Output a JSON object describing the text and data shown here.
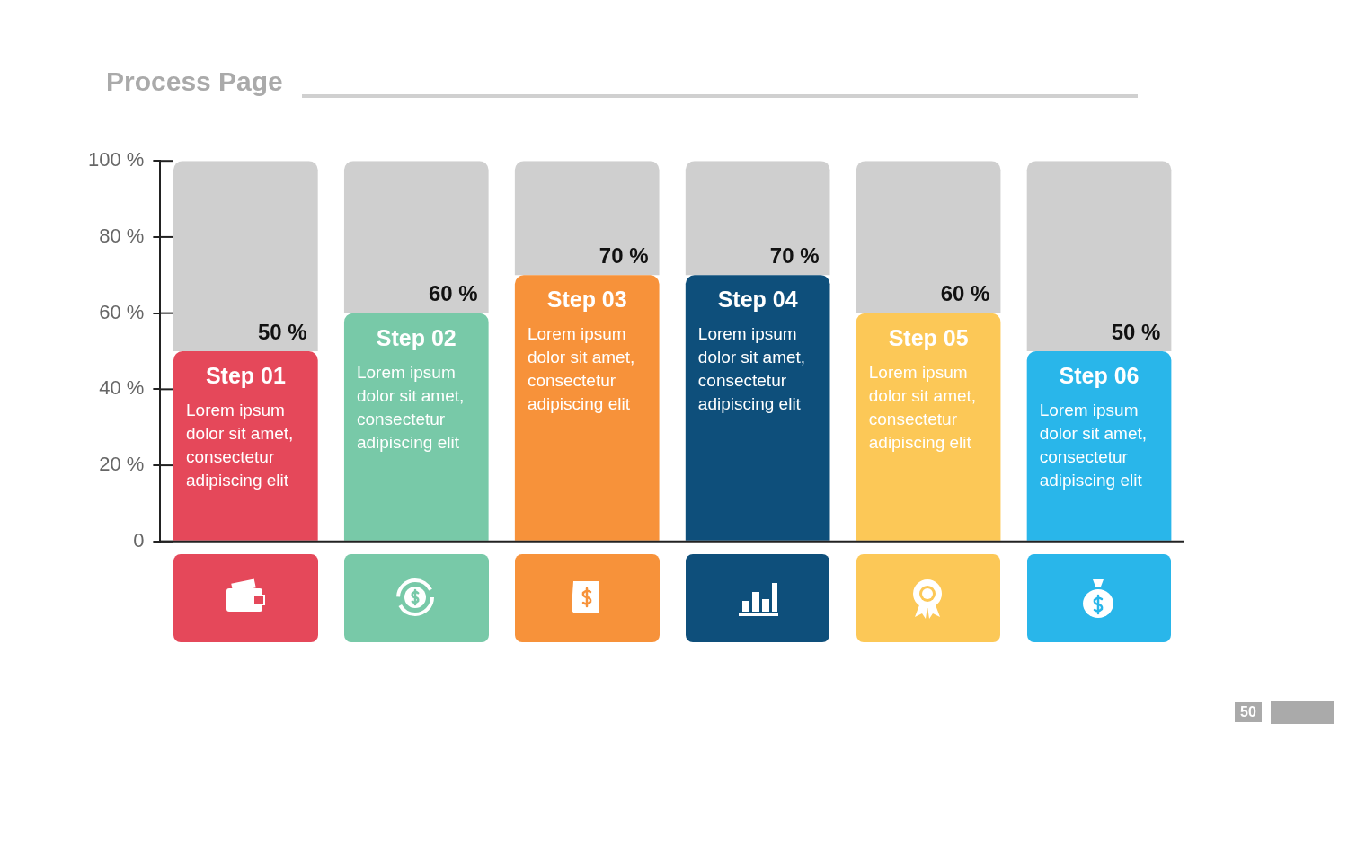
{
  "chart_data": {
    "type": "bar",
    "title": "Process Page",
    "categories": [
      "Step 01",
      "Step 02",
      "Step 03",
      "Step 04",
      "Step 05",
      "Step 06"
    ],
    "stacked": true,
    "series": [
      {
        "colors": [
          "#e5485a",
          "#78c9a8",
          "#f7923a",
          "#0e4f7b",
          "#fcc857",
          "#29b6ea"
        ],
        "values": [
          50,
          60,
          70,
          70,
          60,
          50
        ],
        "value_labels": [
          "50 %",
          "60 %",
          "70 %",
          "70 %",
          "60 %",
          "50 %"
        ]
      },
      {
        "color": "#cfcfcf",
        "values": [
          50,
          40,
          30,
          30,
          40,
          50
        ]
      }
    ],
    "ylim": [
      0,
      100
    ],
    "yticks": [
      {
        "value": 0,
        "label": "0"
      },
      {
        "value": 20,
        "label": "20 %"
      },
      {
        "value": 40,
        "label": "40 %"
      },
      {
        "value": 60,
        "label": "60 %"
      },
      {
        "value": 80,
        "label": "80 %"
      },
      {
        "value": 100,
        "label": "100 %"
      }
    ],
    "tick_labels": "y",
    "grid": false,
    "annotations": [
      "Lorem ipsum dolor sit amet, consectetur adipiscing elit",
      "Lorem ipsum dolor sit amet, consectetur adipiscing elit",
      "Lorem ipsum dolor sit amet, consectetur adipiscing elit",
      "Lorem ipsum dolor sit amet, consectetur adipiscing elit",
      "Lorem ipsum dolor sit amet, consectetur adipiscing elit",
      "Lorem ipsum dolor sit amet, consectetur adipiscing elit",
      "50"
    ]
  }
}
